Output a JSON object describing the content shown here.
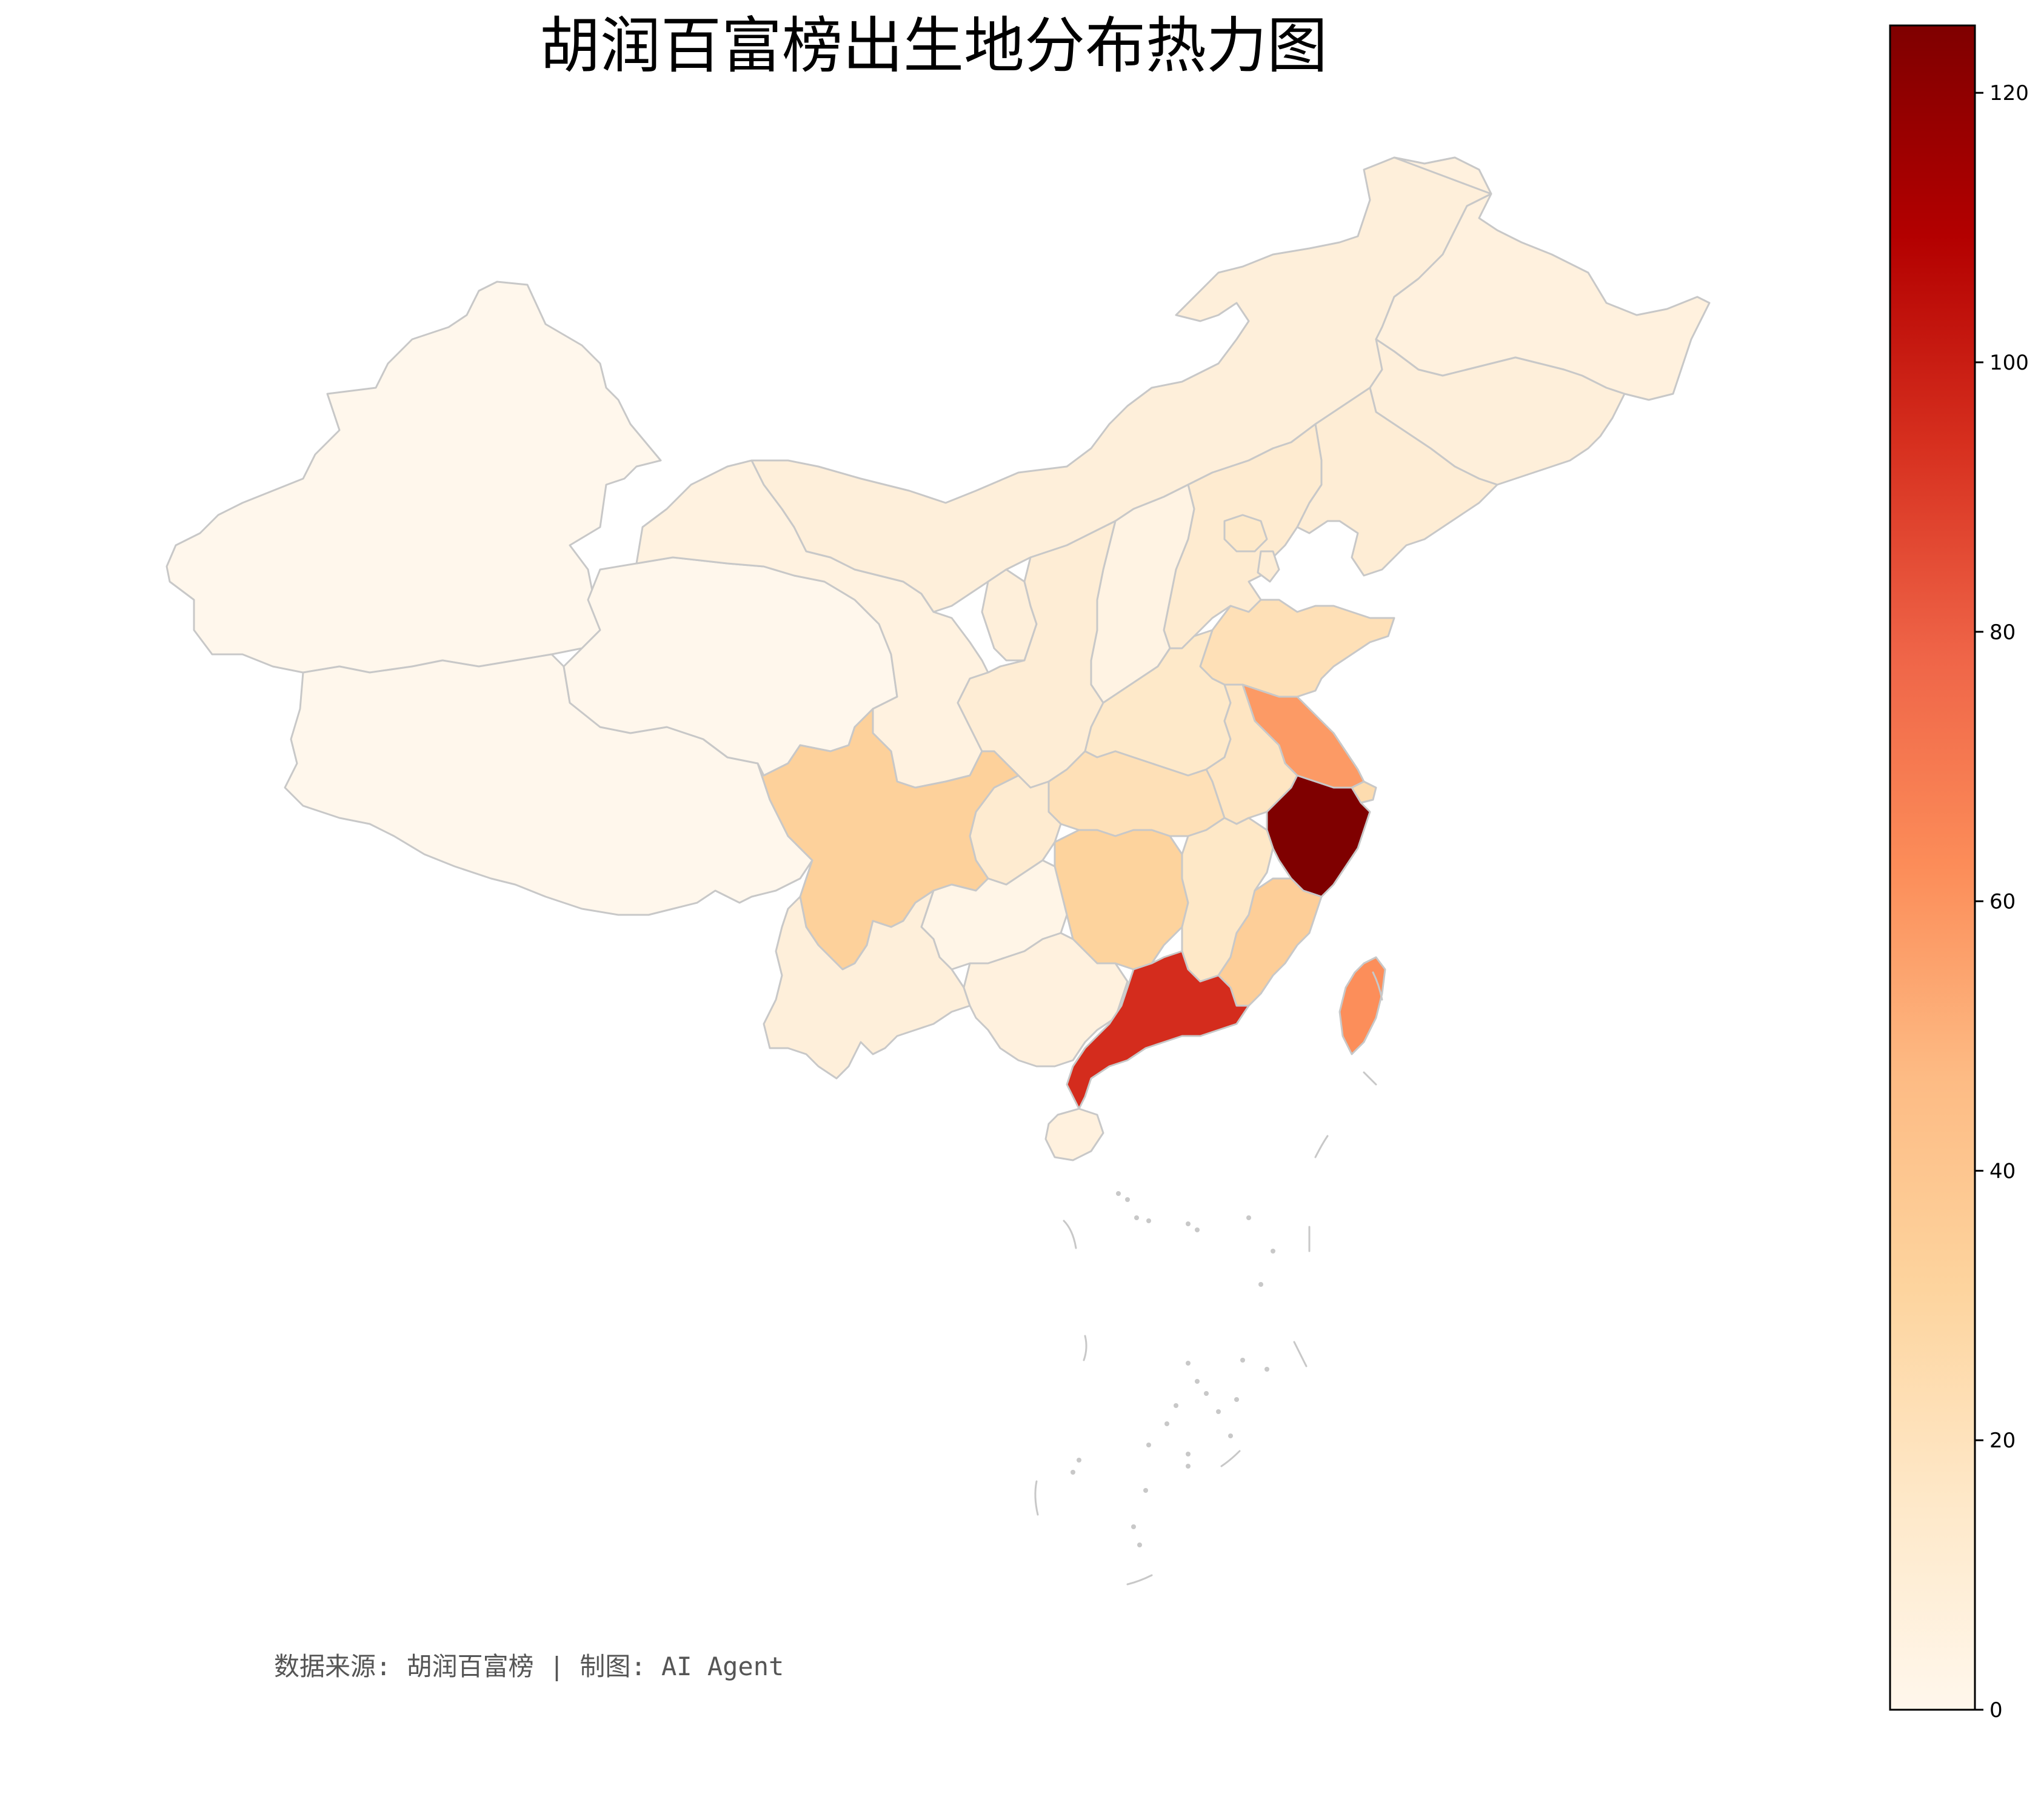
{
  "title": "胡润百富榜出生地分布热力图",
  "footer": "数据来源: 胡润百富榜 | 制图: AI Agent",
  "chart_data": {
    "type": "heatmap",
    "subtype": "choropleth-map",
    "title": "胡润百富榜出生地分布热力图",
    "colormap": "OrRd",
    "colorbar": {
      "min": 0,
      "max": 125,
      "ticks": [
        "0",
        "20",
        "40",
        "60",
        "80",
        "100",
        "120"
      ],
      "tick_values": [
        0,
        20,
        40,
        60,
        80,
        100,
        120
      ],
      "placement": "right"
    },
    "regions": [
      {
        "name": "新疆",
        "value": 0
      },
      {
        "name": "西藏",
        "value": 0
      },
      {
        "name": "青海",
        "value": 0
      },
      {
        "name": "甘肃",
        "value": 5
      },
      {
        "name": "内蒙古",
        "value": 8
      },
      {
        "name": "黑龙江",
        "value": 6
      },
      {
        "name": "吉林",
        "value": 8
      },
      {
        "name": "辽宁",
        "value": 10
      },
      {
        "name": "宁夏",
        "value": 8
      },
      {
        "name": "陕西",
        "value": 10
      },
      {
        "name": "山西",
        "value": 4
      },
      {
        "name": "河北",
        "value": 12
      },
      {
        "name": "北京",
        "value": 15
      },
      {
        "name": "天津",
        "value": 10
      },
      {
        "name": "山东",
        "value": 22
      },
      {
        "name": "河南",
        "value": 15
      },
      {
        "name": "江苏",
        "value": 58
      },
      {
        "name": "安徽",
        "value": 18
      },
      {
        "name": "上海",
        "value": 25
      },
      {
        "name": "浙江",
        "value": 125
      },
      {
        "name": "湖北",
        "value": 22
      },
      {
        "name": "重庆",
        "value": 12
      },
      {
        "name": "四川",
        "value": 33
      },
      {
        "name": "湖南",
        "value": 32
      },
      {
        "name": "江西",
        "value": 16
      },
      {
        "name": "福建",
        "value": 35
      },
      {
        "name": "贵州",
        "value": 2
      },
      {
        "name": "云南",
        "value": 8
      },
      {
        "name": "广西",
        "value": 6
      },
      {
        "name": "广东",
        "value": 95
      },
      {
        "name": "海南",
        "value": 6
      },
      {
        "name": "台湾",
        "value": 62
      }
    ]
  }
}
